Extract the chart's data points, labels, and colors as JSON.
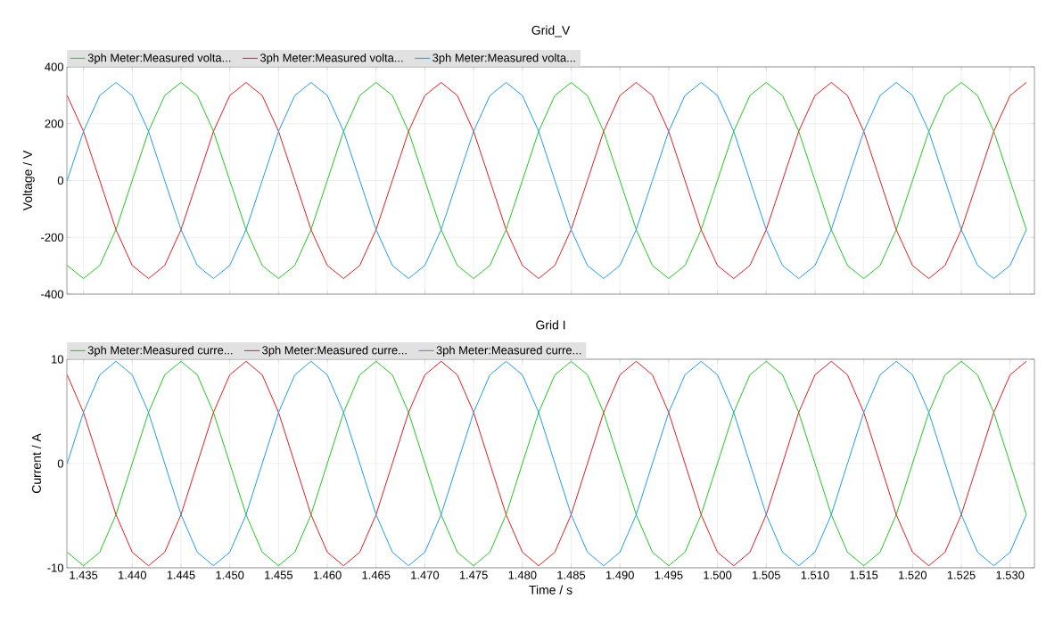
{
  "chart_data": [
    {
      "type": "line",
      "title": "Grid_V",
      "ylabel": "Voltage / V",
      "legend": "top left",
      "grid": true,
      "marker": "none",
      "line_style": "solid",
      "tick_labels": "y",
      "x": [
        1.43333,
        1.435,
        1.43667,
        1.43833,
        1.44,
        1.44167,
        1.44333,
        1.445,
        1.44667,
        1.44833,
        1.45,
        1.45167,
        1.45333,
        1.455,
        1.45667,
        1.45833,
        1.46,
        1.46167,
        1.46333,
        1.465,
        1.46667,
        1.46833,
        1.47,
        1.47167,
        1.47333,
        1.475,
        1.47667,
        1.47833,
        1.48,
        1.48167,
        1.48333,
        1.485,
        1.48667,
        1.48833,
        1.49,
        1.49167,
        1.49333,
        1.495,
        1.49667,
        1.49833,
        1.5,
        1.50167,
        1.50333,
        1.505,
        1.50667,
        1.50833,
        1.51,
        1.51167,
        1.51333,
        1.515,
        1.51667,
        1.51833,
        1.52,
        1.52167,
        1.52333,
        1.525,
        1.52667,
        1.52833,
        1.53,
        1.53167
      ],
      "xlim": [
        1.4333,
        1.5325
      ],
      "ylim": [
        -400,
        400
      ],
      "yticks": [
        -400,
        -200,
        0,
        200,
        400
      ],
      "xticks": [
        1.435,
        1.44,
        1.445,
        1.45,
        1.455,
        1.46,
        1.465,
        1.47,
        1.475,
        1.48,
        1.485,
        1.49,
        1.495,
        1.5,
        1.505,
        1.51,
        1.515,
        1.52,
        1.525,
        1.53
      ],
      "series": [
        {
          "name": "3ph Meter:Measured volta...",
          "color": "#1ec81e",
          "values": [
            -299,
            -345,
            -299,
            -173,
            0,
            173,
            299,
            345,
            299,
            173,
            0,
            -173,
            -299,
            -345,
            -299,
            -173,
            0,
            173,
            299,
            345,
            299,
            173,
            0,
            -173,
            -299,
            -345,
            -299,
            -173,
            0,
            173,
            299,
            345,
            299,
            173,
            0,
            -173,
            -299,
            -345,
            -299,
            -173,
            0,
            173,
            299,
            345,
            299,
            173,
            0,
            -173,
            -299,
            -345,
            -299,
            -173,
            0,
            173,
            299,
            345,
            299,
            173,
            0,
            -173
          ]
        },
        {
          "name": "3ph Meter:Measured volta...",
          "color": "#e8191e",
          "values": [
            299,
            173,
            0,
            -173,
            -299,
            -345,
            -299,
            -173,
            0,
            173,
            299,
            345,
            299,
            173,
            0,
            -173,
            -299,
            -345,
            -299,
            -173,
            0,
            173,
            299,
            345,
            299,
            173,
            0,
            -173,
            -299,
            -345,
            -299,
            -173,
            0,
            173,
            299,
            345,
            299,
            173,
            0,
            -173,
            -299,
            -345,
            -299,
            -173,
            0,
            173,
            299,
            345,
            299,
            173,
            0,
            -173,
            -299,
            -345,
            -299,
            -173,
            0,
            173,
            299,
            345
          ]
        },
        {
          "name": "3ph Meter:Measured volta...",
          "color": "#1e9bf0",
          "values": [
            0,
            173,
            299,
            345,
            299,
            173,
            0,
            -173,
            -299,
            -345,
            -299,
            -173,
            0,
            173,
            299,
            345,
            299,
            173,
            0,
            -173,
            -299,
            -345,
            -299,
            -173,
            0,
            173,
            299,
            345,
            299,
            173,
            0,
            -173,
            -299,
            -345,
            -299,
            -173,
            0,
            173,
            299,
            345,
            299,
            173,
            0,
            -173,
            -299,
            -345,
            -299,
            -173,
            0,
            173,
            299,
            345,
            299,
            173,
            0,
            -173,
            -299,
            -345,
            -299,
            -173
          ]
        }
      ]
    },
    {
      "type": "line",
      "title": "Grid I",
      "ylabel": "Current / A",
      "xlabel": "Time / s",
      "legend": "top left",
      "grid": true,
      "marker": "none",
      "line_style": "solid",
      "x": [
        1.43333,
        1.435,
        1.43667,
        1.43833,
        1.44,
        1.44167,
        1.44333,
        1.445,
        1.44667,
        1.44833,
        1.45,
        1.45167,
        1.45333,
        1.455,
        1.45667,
        1.45833,
        1.46,
        1.46167,
        1.46333,
        1.465,
        1.46667,
        1.46833,
        1.47,
        1.47167,
        1.47333,
        1.475,
        1.47667,
        1.47833,
        1.48,
        1.48167,
        1.48333,
        1.485,
        1.48667,
        1.48833,
        1.49,
        1.49167,
        1.49333,
        1.495,
        1.49667,
        1.49833,
        1.5,
        1.50167,
        1.50333,
        1.505,
        1.50667,
        1.50833,
        1.51,
        1.51167,
        1.51333,
        1.515,
        1.51667,
        1.51833,
        1.52,
        1.52167,
        1.52333,
        1.525,
        1.52667,
        1.52833,
        1.53,
        1.53167
      ],
      "xlim": [
        1.4333,
        1.5325
      ],
      "ylim": [
        -10,
        10
      ],
      "yticks": [
        -10,
        0,
        10
      ],
      "xticks": [
        1.435,
        {
          "value": 1.44,
          "label": "1.440"
        },
        1.445,
        {
          "value": 1.45,
          "label": "1.450"
        },
        1.455,
        {
          "value": 1.46,
          "label": "1.460"
        },
        1.465,
        {
          "value": 1.47,
          "label": "1.470"
        },
        1.475,
        {
          "value": 1.48,
          "label": "1.480"
        },
        1.485,
        {
          "value": 1.49,
          "label": "1.490"
        },
        1.495,
        {
          "value": 1.5,
          "label": "1.500"
        },
        1.505,
        {
          "value": 1.51,
          "label": "1.510"
        },
        1.515,
        {
          "value": 1.52,
          "label": "1.520"
        },
        1.525,
        {
          "value": 1.53,
          "label": "1.530"
        }
      ],
      "series": [
        {
          "name": "3ph Meter:Measured curre...",
          "color": "#1ec81e",
          "values": [
            -8.5,
            -9.8,
            -8.5,
            -4.9,
            0,
            4.9,
            8.5,
            9.8,
            8.5,
            4.9,
            0,
            -4.9,
            -8.5,
            -9.8,
            -8.5,
            -4.9,
            0,
            4.9,
            8.5,
            9.8,
            8.5,
            4.9,
            0,
            -4.9,
            -8.5,
            -9.8,
            -8.5,
            -4.9,
            0,
            4.9,
            8.5,
            9.8,
            8.5,
            4.9,
            0,
            -4.9,
            -8.5,
            -9.8,
            -8.5,
            -4.9,
            0,
            4.9,
            8.5,
            9.8,
            8.5,
            4.9,
            0,
            -4.9,
            -8.5,
            -9.8,
            -8.5,
            -4.9,
            0,
            4.9,
            8.5,
            9.8,
            8.5,
            4.9,
            0,
            -4.9
          ]
        },
        {
          "name": "3ph Meter:Measured curre...",
          "color": "#e8191e",
          "values": [
            8.5,
            4.9,
            0,
            -4.9,
            -8.5,
            -9.8,
            -8.5,
            -4.9,
            0,
            4.9,
            8.5,
            9.8,
            8.5,
            4.9,
            0,
            -4.9,
            -8.5,
            -9.8,
            -8.5,
            -4.9,
            0,
            4.9,
            8.5,
            9.8,
            8.5,
            4.9,
            0,
            -4.9,
            -8.5,
            -9.8,
            -8.5,
            -4.9,
            0,
            4.9,
            8.5,
            9.8,
            8.5,
            4.9,
            0,
            -4.9,
            -8.5,
            -9.8,
            -8.5,
            -4.9,
            0,
            4.9,
            8.5,
            9.8,
            8.5,
            4.9,
            0,
            -4.9,
            -8.5,
            -9.8,
            -8.5,
            -4.9,
            0,
            4.9,
            8.5,
            9.8
          ]
        },
        {
          "name": "3ph Meter:Measured curre...",
          "color": "#1e9bf0",
          "values": [
            0,
            4.9,
            8.5,
            9.8,
            8.5,
            4.9,
            0,
            -4.9,
            -8.5,
            -9.8,
            -8.5,
            -4.9,
            0,
            4.9,
            8.5,
            9.8,
            8.5,
            4.9,
            0,
            -4.9,
            -8.5,
            -9.8,
            -8.5,
            -4.9,
            0,
            4.9,
            8.5,
            9.8,
            8.5,
            4.9,
            0,
            -4.9,
            -8.5,
            -9.8,
            -8.5,
            -4.9,
            0,
            4.9,
            8.5,
            9.8,
            8.5,
            4.9,
            0,
            -4.9,
            -8.5,
            -9.8,
            -8.5,
            -4.9,
            0,
            4.9,
            8.5,
            9.8,
            8.5,
            4.9,
            0,
            -4.9,
            -8.5,
            -9.8,
            -8.5,
            -4.9
          ]
        }
      ]
    }
  ]
}
